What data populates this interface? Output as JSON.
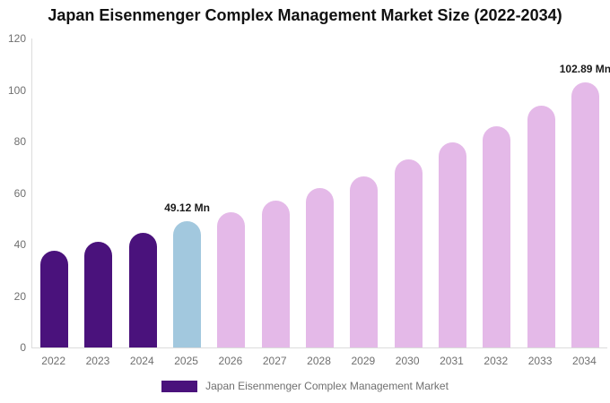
{
  "title": "Japan Eisenmenger Complex Management Market Size (2022-2034)",
  "legend": {
    "label": "Japan Eisenmenger Complex Management Market",
    "swatch_color": "#4a127c"
  },
  "colors": {
    "historical_bar": "#4a127c",
    "highlight_bar": "#a2c8de",
    "forecast_bar": "#e4b9e8",
    "axis_line": "#dcdcdc",
    "tick_text": "#6f6f6f",
    "annotation_text": "#1a1a1a",
    "title_text": "#111111"
  },
  "chart_data": {
    "type": "bar",
    "title": "Japan Eisenmenger Complex Management Market Size (2022-2034)",
    "categories": [
      "2022",
      "2023",
      "2024",
      "2025",
      "2026",
      "2027",
      "2028",
      "2029",
      "2030",
      "2031",
      "2032",
      "2033",
      "2034"
    ],
    "values": [
      37.5,
      41,
      44.5,
      49.12,
      52.5,
      57,
      62,
      66.5,
      73,
      79.5,
      86,
      94,
      102.89
    ],
    "unit": "Mn",
    "xlabel": "",
    "ylabel": "",
    "ylim": [
      0,
      120
    ],
    "yticks": [
      0,
      20,
      40,
      60,
      80,
      100,
      120
    ],
    "grid": false,
    "legend_entries": [
      "Japan Eisenmenger Complex Management Market"
    ],
    "legend_position": "bottom",
    "annotations": [
      {
        "category": "2025",
        "text": "49.12 Mn"
      },
      {
        "category": "2034",
        "text": "102.89 Mn"
      }
    ],
    "bar_colors": [
      "#4a127c",
      "#4a127c",
      "#4a127c",
      "#a2c8de",
      "#e4b9e8",
      "#e4b9e8",
      "#e4b9e8",
      "#e4b9e8",
      "#e4b9e8",
      "#e4b9e8",
      "#e4b9e8",
      "#e4b9e8",
      "#e4b9e8"
    ]
  }
}
